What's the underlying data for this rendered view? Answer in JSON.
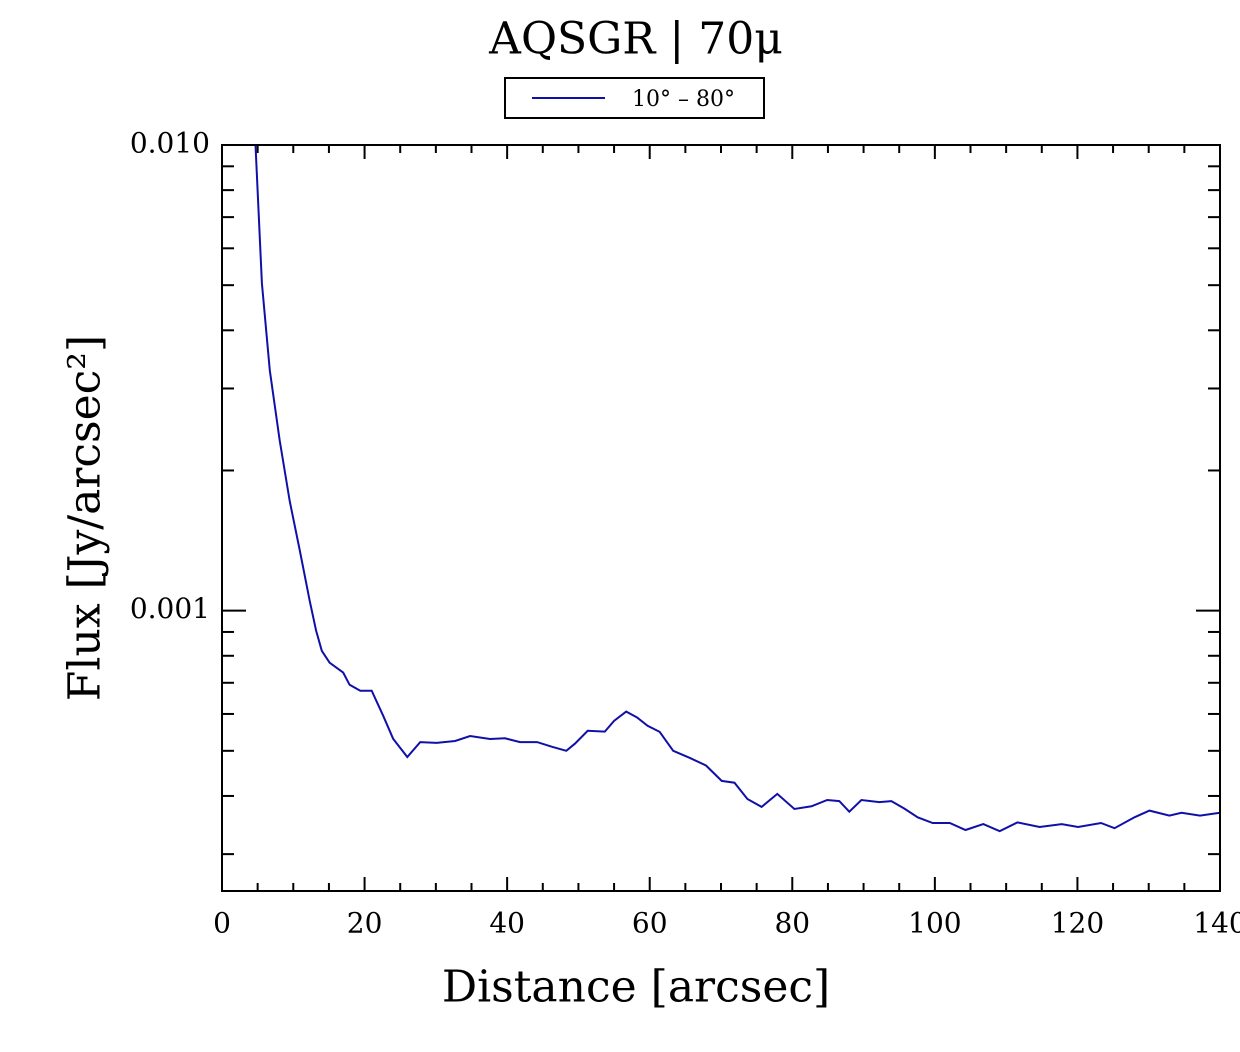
{
  "chart_data": {
    "type": "line",
    "title": "AQSGR | 70μ",
    "xlabel": "Distance [arcsec]",
    "ylabel": "Flux [Jy/arcsec²]",
    "log_y": true,
    "legend": "top",
    "xlim": [
      0,
      140
    ],
    "xticks": [
      0,
      20,
      40,
      60,
      80,
      100,
      120,
      140
    ],
    "xminorticks": [
      5,
      10,
      15,
      25,
      30,
      35,
      45,
      50,
      55,
      65,
      70,
      75,
      85,
      90,
      95,
      105,
      110,
      115,
      125,
      130,
      135
    ],
    "ylim": [
      0.00025,
      0.01
    ],
    "yticks": [
      {
        "value": 0.001,
        "label": "0.001"
      },
      {
        "value": 0.01,
        "label": "0.010"
      }
    ],
    "yminorticks": [
      0.0003,
      0.0004,
      0.0005,
      0.0006,
      0.0007,
      0.0008,
      0.0009,
      0.002,
      0.003,
      0.004,
      0.005,
      0.006,
      0.007,
      0.008,
      0.009
    ],
    "x": [
      4.7,
      5.6,
      6.7,
      8.1,
      9.5,
      10.9,
      12.3,
      13.2,
      14.0,
      15.1,
      17.0,
      17.9,
      19.4,
      21.0,
      22.6,
      24.0,
      26.0,
      27.8,
      30.1,
      32.7,
      34.8,
      37.6,
      39.7,
      41.8,
      44.2,
      46.3,
      48.3,
      49.5,
      51.3,
      53.7,
      55.0,
      56.7,
      58.2,
      59.7,
      61.4,
      63.3,
      65.6,
      67.9,
      70.1,
      71.9,
      73.7,
      75.7,
      77.9,
      80.3,
      82.7,
      84.9,
      86.6,
      88.0,
      89.7,
      92.2,
      93.9,
      95.7,
      97.6,
      99.7,
      102.1,
      104.3,
      106.8,
      109.1,
      111.6,
      114.7,
      117.8,
      120.1,
      123.3,
      125.2,
      128.0,
      130.1,
      132.9,
      134.6,
      137.2,
      140.0
    ],
    "series": [
      {
        "name": "10° – 80°",
        "color": "#1010a8",
        "values": [
          0.01,
          0.00505,
          0.00328,
          0.00232,
          0.00172,
          0.00135,
          0.00105,
          0.000906,
          0.00082,
          0.000773,
          0.000736,
          0.000693,
          0.000673,
          0.000673,
          0.000595,
          0.000531,
          0.000485,
          0.000522,
          0.00052,
          0.000525,
          0.000538,
          0.00053,
          0.000532,
          0.000522,
          0.000522,
          0.00051,
          0.0005,
          0.000518,
          0.000552,
          0.00055,
          0.00058,
          0.000607,
          0.00059,
          0.000566,
          0.000549,
          0.0005,
          0.000483,
          0.000465,
          0.000431,
          0.000427,
          0.000394,
          0.000379,
          0.000404,
          0.000375,
          0.00038,
          0.000392,
          0.00039,
          0.00037,
          0.000392,
          0.000388,
          0.00039,
          0.000376,
          0.00036,
          0.00035,
          0.00035,
          0.000338,
          0.000348,
          0.000336,
          0.000351,
          0.000343,
          0.000348,
          0.000343,
          0.00035,
          0.000341,
          0.00036,
          0.000372,
          0.000363,
          0.000368,
          0.000363,
          0.000368
        ]
      }
    ]
  }
}
